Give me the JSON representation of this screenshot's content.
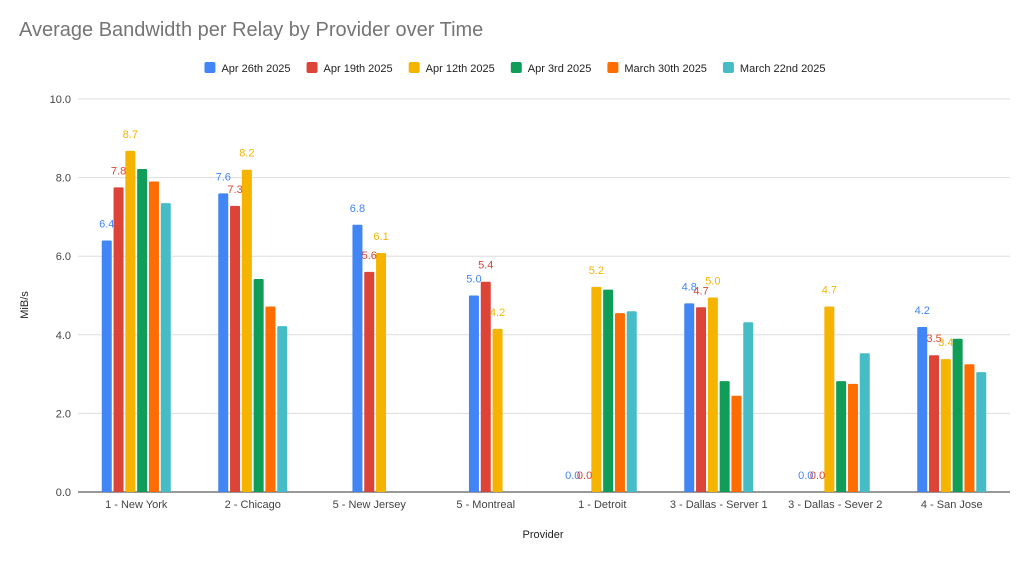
{
  "chart_data": {
    "type": "bar",
    "title": "Average Bandwidth per Relay by Provider over Time",
    "xlabel": "Provider",
    "ylabel": "MiB/s",
    "ylim": [
      0,
      10
    ],
    "yticks": [
      "0.0",
      "2.0",
      "4.0",
      "6.0",
      "8.0",
      "10.0"
    ],
    "grid": true,
    "legend_position": "top",
    "categories": [
      "1 - New York",
      "2 - Chicago",
      "5 - New Jersey",
      "5 - Montreal",
      "1 - Detroit",
      "3 - Dallas - Server 1",
      "3 - Dallas - Sever 2",
      "4 - San Jose"
    ],
    "series": [
      {
        "name": "Apr 26th 2025",
        "color": "#4285F4",
        "values": [
          6.4,
          7.6,
          6.8,
          5.0,
          0.0,
          4.8,
          0.0,
          4.2
        ],
        "labels": [
          "6.4",
          "7.6",
          "6.8",
          "5.0",
          "0.0",
          "4.8",
          "0.0",
          "4.2"
        ]
      },
      {
        "name": "Apr 19th 2025",
        "color": "#DB4437",
        "values": [
          7.75,
          7.28,
          5.6,
          5.35,
          0.0,
          4.7,
          0.0,
          3.48
        ],
        "labels": [
          "7.8",
          "7.3",
          "5.6",
          "5.4",
          "0.0",
          "4.7",
          "0.0",
          "3.5"
        ]
      },
      {
        "name": "Apr 12th 2025",
        "color": "#F4B400",
        "values": [
          8.68,
          8.2,
          6.08,
          4.15,
          5.22,
          4.95,
          4.72,
          3.38
        ],
        "labels": [
          "8.7",
          "8.2",
          "6.1",
          "4.2",
          "5.2",
          "5.0",
          "4.7",
          "3.4"
        ]
      },
      {
        "name": "Apr 3rd 2025",
        "color": "#0F9D58",
        "values": [
          8.22,
          5.42,
          null,
          null,
          5.15,
          2.82,
          2.82,
          3.9
        ],
        "labels": [
          null,
          null,
          null,
          null,
          null,
          null,
          null,
          null
        ]
      },
      {
        "name": "March 30th 2025",
        "color": "#FF6D01",
        "values": [
          7.9,
          4.72,
          null,
          null,
          4.55,
          2.45,
          2.75,
          3.25
        ],
        "labels": [
          null,
          null,
          null,
          null,
          null,
          null,
          null,
          null
        ]
      },
      {
        "name": "March 22nd 2025",
        "color": "#46BDC6",
        "values": [
          7.35,
          4.22,
          null,
          null,
          4.6,
          4.32,
          3.53,
          3.05
        ],
        "labels": [
          null,
          null,
          null,
          null,
          null,
          null,
          null,
          null
        ]
      }
    ]
  }
}
